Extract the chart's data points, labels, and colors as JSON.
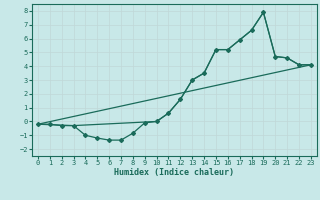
{
  "title": "",
  "xlabel": "Humidex (Indice chaleur)",
  "bg_color": "#c8e8e8",
  "grid_color": "#c0d8d8",
  "line_color": "#1a6b5a",
  "xlim": [
    -0.5,
    23.5
  ],
  "ylim": [
    -2.5,
    8.5
  ],
  "xticks": [
    0,
    1,
    2,
    3,
    4,
    5,
    6,
    7,
    8,
    9,
    10,
    11,
    12,
    13,
    14,
    15,
    16,
    17,
    18,
    19,
    20,
    21,
    22,
    23
  ],
  "yticks": [
    -2,
    -1,
    0,
    1,
    2,
    3,
    4,
    5,
    6,
    7,
    8
  ],
  "curve1_x": [
    0,
    1,
    2,
    3,
    4,
    5,
    6,
    7,
    8,
    9,
    10,
    11,
    12,
    13,
    14,
    15,
    16,
    17,
    18,
    19,
    20,
    21,
    22,
    23
  ],
  "curve1_y": [
    -0.2,
    -0.2,
    -0.3,
    -0.3,
    -1.0,
    -1.2,
    -1.35,
    -1.35,
    -0.85,
    -0.1,
    0.0,
    0.6,
    1.6,
    3.0,
    3.5,
    5.2,
    5.2,
    5.9,
    6.6,
    7.9,
    4.7,
    4.6,
    4.1,
    4.1
  ],
  "curve2_x": [
    0,
    3,
    10,
    11,
    12,
    13,
    14,
    15,
    16,
    17,
    18,
    19,
    20,
    21,
    22,
    23
  ],
  "curve2_y": [
    -0.2,
    -0.3,
    0.0,
    0.6,
    1.6,
    3.0,
    3.5,
    5.2,
    5.2,
    5.9,
    6.6,
    7.9,
    4.7,
    4.6,
    4.1,
    4.1
  ],
  "curve3_x": [
    0,
    23
  ],
  "curve3_y": [
    -0.2,
    4.1
  ]
}
